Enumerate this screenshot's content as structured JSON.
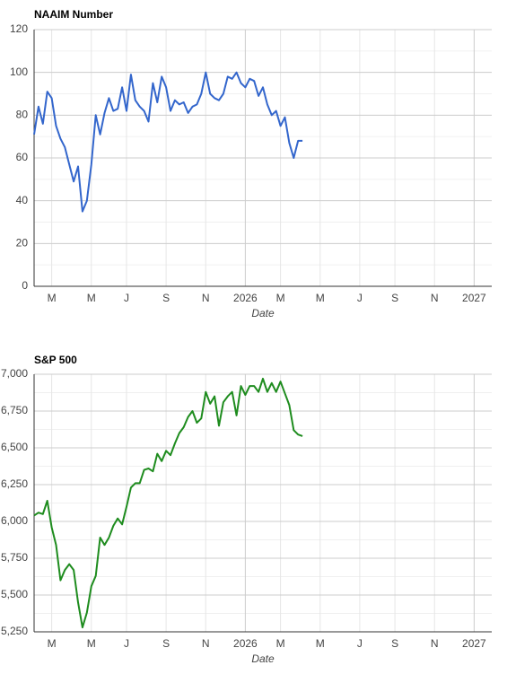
{
  "chart_data": [
    {
      "type": "line",
      "title": "NAAIM Number",
      "x_label": "Date",
      "categories": [
        null,
        null,
        null,
        null,
        "M",
        null,
        null,
        null,
        null,
        null,
        null,
        null,
        null,
        "M",
        null,
        null,
        null,
        null,
        null,
        null,
        null,
        "J",
        null,
        null,
        null,
        null,
        null,
        null,
        null,
        null,
        "S",
        null,
        null,
        null,
        null,
        null,
        null,
        null,
        null,
        "N",
        null,
        null,
        null,
        null,
        null,
        null,
        null,
        null,
        "2026",
        null,
        null,
        null,
        null,
        null,
        null,
        null,
        "M",
        null,
        null,
        null,
        null,
        null,
        null,
        null,
        null,
        "M",
        null,
        null,
        null,
        null,
        null,
        null,
        null,
        null,
        "J",
        null,
        null,
        null,
        null,
        null,
        null,
        null,
        "S",
        null,
        null,
        null,
        null,
        null,
        null,
        null,
        null,
        "N",
        null,
        null,
        null,
        null,
        null,
        null,
        null,
        null,
        "2027"
      ],
      "series": [
        {
          "name": "NAAIM Number",
          "color": "#3366cc",
          "values": [
            71,
            84,
            76,
            91,
            88,
            75,
            69,
            65,
            57,
            49,
            56,
            35,
            40,
            57,
            80,
            71,
            81,
            88,
            82,
            83,
            93,
            82,
            99,
            87,
            84,
            82,
            77,
            95,
            86,
            98,
            93,
            82,
            87,
            85,
            86,
            81,
            84,
            85,
            90,
            100,
            90,
            88,
            87,
            90,
            98,
            97,
            100,
            95,
            93,
            97,
            96,
            89,
            93,
            85,
            80,
            82,
            75,
            79,
            67,
            60,
            68,
            68,
            null,
            null,
            null,
            null,
            null,
            null,
            null,
            null,
            null,
            null,
            null,
            null,
            null,
            null,
            null,
            null,
            null,
            null,
            null,
            null,
            null,
            null,
            null,
            null,
            null,
            null,
            null,
            null,
            null,
            null,
            null,
            null,
            null,
            null,
            null,
            null,
            null,
            null,
            null
          ]
        }
      ],
      "ylim": [
        0,
        120
      ],
      "yticks": [
        0,
        20,
        40,
        60,
        80,
        100,
        120
      ],
      "grid": true
    },
    {
      "type": "line",
      "title": "S&P 500",
      "x_label": "Date",
      "categories": [
        null,
        null,
        null,
        null,
        "M",
        null,
        null,
        null,
        null,
        null,
        null,
        null,
        null,
        "M",
        null,
        null,
        null,
        null,
        null,
        null,
        null,
        "J",
        null,
        null,
        null,
        null,
        null,
        null,
        null,
        null,
        "S",
        null,
        null,
        null,
        null,
        null,
        null,
        null,
        null,
        "N",
        null,
        null,
        null,
        null,
        null,
        null,
        null,
        null,
        "2026",
        null,
        null,
        null,
        null,
        null,
        null,
        null,
        "M",
        null,
        null,
        null,
        null,
        null,
        null,
        null,
        null,
        "M",
        null,
        null,
        null,
        null,
        null,
        null,
        null,
        null,
        "J",
        null,
        null,
        null,
        null,
        null,
        null,
        null,
        "S",
        null,
        null,
        null,
        null,
        null,
        null,
        null,
        null,
        "N",
        null,
        null,
        null,
        null,
        null,
        null,
        null,
        null,
        "2027"
      ],
      "series": [
        {
          "name": "S&P 500",
          "color": "#1e8c1e",
          "values": [
            6040,
            6060,
            6050,
            6140,
            5960,
            5840,
            5600,
            5670,
            5710,
            5670,
            5450,
            5280,
            5380,
            5560,
            5630,
            5890,
            5840,
            5890,
            5970,
            6020,
            5980,
            6100,
            6230,
            6260,
            6260,
            6350,
            6360,
            6340,
            6460,
            6410,
            6480,
            6450,
            6530,
            6600,
            6640,
            6710,
            6750,
            6670,
            6700,
            6880,
            6800,
            6850,
            6650,
            6810,
            6850,
            6880,
            6720,
            6920,
            6860,
            6920,
            6920,
            6880,
            6970,
            6880,
            6940,
            6880,
            6950,
            6870,
            6790,
            6620,
            6590,
            6580,
            null,
            null,
            null,
            null,
            null,
            null,
            null,
            null,
            null,
            null,
            null,
            null,
            null,
            null,
            null,
            null,
            null,
            null,
            null,
            null,
            null,
            null,
            null,
            null,
            null,
            null,
            null,
            null,
            null,
            null,
            null,
            null,
            null,
            null,
            null,
            null,
            null,
            null,
            null
          ]
        }
      ],
      "ylim": [
        5250,
        7000
      ],
      "yticks": [
        {
          "value": 5250,
          "label": "5,250"
        },
        {
          "value": 5500,
          "label": "5,500"
        },
        {
          "value": 5750,
          "label": "5,750"
        },
        {
          "value": 6000,
          "label": "6,000"
        },
        {
          "value": 6250,
          "label": "6,250"
        },
        {
          "value": 6500,
          "label": "6,500"
        },
        {
          "value": 6750,
          "label": "6,750"
        },
        {
          "value": 7000,
          "label": "7,000"
        }
      ],
      "grid": true
    }
  ]
}
